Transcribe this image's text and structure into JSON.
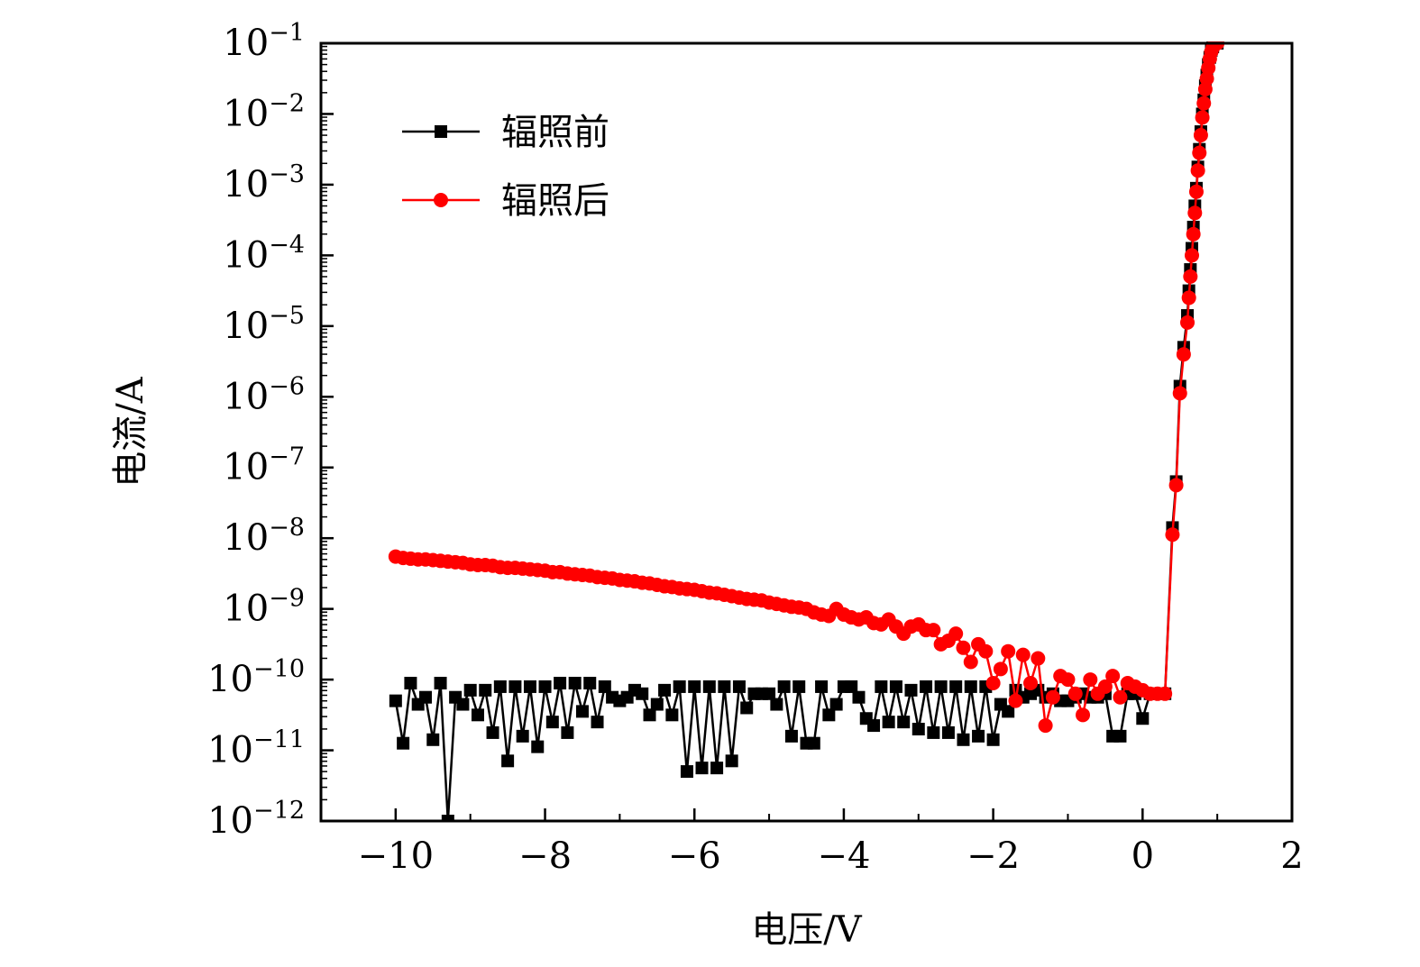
{
  "chart_data": {
    "type": "line",
    "xlabel": "电压/V",
    "ylabel": "电流/A",
    "xlim": [
      -11,
      2
    ],
    "ylim_log10": [
      -12,
      -1
    ],
    "y_scale": "log",
    "x_ticks": [
      -10,
      -8,
      -6,
      -4,
      -2,
      0,
      2
    ],
    "x_tick_labels": [
      "−10",
      "−8",
      "−6",
      "−4",
      "−2",
      "0",
      "2"
    ],
    "y_ticks_log10": [
      -12,
      -11,
      -10,
      -9,
      -8,
      -7,
      -6,
      -5,
      -4,
      -3,
      -2,
      -1
    ],
    "y_tick_labels": [
      {
        "base": "10",
        "exp": "−12"
      },
      {
        "base": "10",
        "exp": "−11"
      },
      {
        "base": "10",
        "exp": "−10"
      },
      {
        "base": "10",
        "exp": "−9"
      },
      {
        "base": "10",
        "exp": "−8"
      },
      {
        "base": "10",
        "exp": "−7"
      },
      {
        "base": "10",
        "exp": "−6"
      },
      {
        "base": "10",
        "exp": "−5"
      },
      {
        "base": "10",
        "exp": "−4"
      },
      {
        "base": "10",
        "exp": "−3"
      },
      {
        "base": "10",
        "exp": "−2"
      },
      {
        "base": "10",
        "exp": "−1"
      }
    ],
    "legend_position": "top-left",
    "grid": false,
    "series": [
      {
        "name": "辐照前",
        "color": "#000000",
        "marker": "square",
        "x": [
          -10.0,
          -9.9,
          -9.8,
          -9.7,
          -9.6,
          -9.5,
          -9.4,
          -9.3,
          -9.2,
          -9.1,
          -9.0,
          -8.9,
          -8.8,
          -8.7,
          -8.6,
          -8.5,
          -8.4,
          -8.3,
          -8.2,
          -8.1,
          -8.0,
          -7.9,
          -7.8,
          -7.7,
          -7.6,
          -7.5,
          -7.4,
          -7.3,
          -7.2,
          -7.1,
          -7.0,
          -6.9,
          -6.8,
          -6.7,
          -6.6,
          -6.5,
          -6.4,
          -6.3,
          -6.2,
          -6.1,
          -6.0,
          -5.9,
          -5.8,
          -5.7,
          -5.6,
          -5.5,
          -5.4,
          -5.3,
          -5.2,
          -5.1,
          -5.0,
          -4.9,
          -4.8,
          -4.7,
          -4.6,
          -4.5,
          -4.4,
          -4.3,
          -4.2,
          -4.1,
          -4.0,
          -3.9,
          -3.8,
          -3.7,
          -3.6,
          -3.5,
          -3.4,
          -3.3,
          -3.2,
          -3.1,
          -3.0,
          -2.9,
          -2.8,
          -2.7,
          -2.6,
          -2.5,
          -2.4,
          -2.3,
          -2.2,
          -2.1,
          -2.0,
          -1.9,
          -1.8,
          -1.7,
          -1.6,
          -1.5,
          -1.4,
          -1.3,
          -1.2,
          -1.1,
          -1.0,
          -0.9,
          -0.8,
          -0.7,
          -0.6,
          -0.5,
          -0.4,
          -0.3,
          -0.2,
          -0.1,
          0.0,
          0.1,
          0.2,
          0.3,
          0.4,
          0.45,
          0.5,
          0.55,
          0.6,
          0.62,
          0.64,
          0.66,
          0.68,
          0.7,
          0.72,
          0.74,
          0.76,
          0.78,
          0.8,
          0.82,
          0.84,
          0.86,
          0.88,
          0.9,
          0.92,
          0.94,
          0.96,
          0.98,
          1.0
        ],
        "y_log10": [
          -10.3,
          -10.9,
          -10.05,
          -10.35,
          -10.25,
          -10.85,
          -10.05,
          -12.0,
          -10.25,
          -10.35,
          -10.15,
          -10.5,
          -10.15,
          -10.75,
          -10.1,
          -11.15,
          -10.1,
          -10.8,
          -10.1,
          -10.95,
          -10.1,
          -10.6,
          -10.05,
          -10.75,
          -10.05,
          -10.45,
          -10.05,
          -10.6,
          -10.1,
          -10.25,
          -10.3,
          -10.25,
          -10.15,
          -10.2,
          -10.5,
          -10.35,
          -10.15,
          -10.5,
          -10.1,
          -11.3,
          -10.1,
          -11.25,
          -10.1,
          -11.25,
          -10.1,
          -11.15,
          -10.1,
          -10.4,
          -10.2,
          -10.2,
          -10.2,
          -10.35,
          -10.1,
          -10.8,
          -10.1,
          -10.9,
          -10.9,
          -10.1,
          -10.5,
          -10.35,
          -10.1,
          -10.1,
          -10.25,
          -10.55,
          -10.65,
          -10.1,
          -10.6,
          -10.1,
          -10.6,
          -10.15,
          -10.7,
          -10.1,
          -10.75,
          -10.1,
          -10.75,
          -10.1,
          -10.85,
          -10.1,
          -10.8,
          -10.1,
          -10.85,
          -10.35,
          -10.45,
          -10.15,
          -10.25,
          -10.2,
          -10.15,
          -10.25,
          -10.2,
          -10.3,
          -10.3,
          -10.25,
          -10.2,
          -10.25,
          -10.25,
          -10.2,
          -10.8,
          -10.8,
          -10.2,
          -10.2,
          -10.55,
          -10.2,
          -10.2,
          -10.2,
          -7.85,
          -7.2,
          -5.85,
          -5.3,
          -4.85,
          -4.5,
          -4.2,
          -3.9,
          -3.6,
          -3.3,
          -3.05,
          -2.75,
          -2.5,
          -2.25,
          -2.0,
          -1.8,
          -1.6,
          -1.45,
          -1.3,
          -1.2,
          -1.1,
          -1.05,
          -1.0,
          -1.0,
          -1.0
        ]
      },
      {
        "name": "辐照后",
        "color": "#ff0000",
        "marker": "circle",
        "x": [
          -10.0,
          -9.9,
          -9.8,
          -9.7,
          -9.6,
          -9.5,
          -9.4,
          -9.3,
          -9.2,
          -9.1,
          -9.0,
          -8.9,
          -8.8,
          -8.7,
          -8.6,
          -8.5,
          -8.4,
          -8.3,
          -8.2,
          -8.1,
          -8.0,
          -7.9,
          -7.8,
          -7.7,
          -7.6,
          -7.5,
          -7.4,
          -7.3,
          -7.2,
          -7.1,
          -7.0,
          -6.9,
          -6.8,
          -6.7,
          -6.6,
          -6.5,
          -6.4,
          -6.3,
          -6.2,
          -6.1,
          -6.0,
          -5.9,
          -5.8,
          -5.7,
          -5.6,
          -5.5,
          -5.4,
          -5.3,
          -5.2,
          -5.1,
          -5.0,
          -4.9,
          -4.8,
          -4.7,
          -4.6,
          -4.5,
          -4.4,
          -4.3,
          -4.2,
          -4.1,
          -4.0,
          -3.9,
          -3.8,
          -3.7,
          -3.6,
          -3.5,
          -3.4,
          -3.3,
          -3.2,
          -3.1,
          -3.0,
          -2.9,
          -2.8,
          -2.7,
          -2.6,
          -2.5,
          -2.4,
          -2.3,
          -2.2,
          -2.1,
          -2.0,
          -1.9,
          -1.8,
          -1.7,
          -1.6,
          -1.5,
          -1.4,
          -1.3,
          -1.2,
          -1.1,
          -1.0,
          -0.9,
          -0.8,
          -0.7,
          -0.6,
          -0.5,
          -0.4,
          -0.3,
          -0.2,
          -0.1,
          0.0,
          0.1,
          0.2,
          0.3,
          0.4,
          0.45,
          0.5,
          0.55,
          0.6,
          0.62,
          0.64,
          0.66,
          0.68,
          0.7,
          0.72,
          0.74,
          0.76,
          0.78,
          0.8,
          0.82,
          0.84,
          0.86,
          0.88,
          0.9,
          0.92,
          0.94,
          0.96,
          0.98,
          1.0
        ],
        "y_log10": [
          -8.26,
          -8.28,
          -8.29,
          -8.3,
          -8.3,
          -8.31,
          -8.32,
          -8.33,
          -8.34,
          -8.35,
          -8.37,
          -8.38,
          -8.38,
          -8.39,
          -8.41,
          -8.42,
          -8.42,
          -8.43,
          -8.44,
          -8.45,
          -8.46,
          -8.48,
          -8.48,
          -8.5,
          -8.51,
          -8.52,
          -8.53,
          -8.55,
          -8.56,
          -8.57,
          -8.59,
          -8.6,
          -8.61,
          -8.63,
          -8.64,
          -8.66,
          -8.68,
          -8.69,
          -8.71,
          -8.72,
          -8.73,
          -8.75,
          -8.77,
          -8.78,
          -8.8,
          -8.82,
          -8.84,
          -8.86,
          -8.87,
          -8.88,
          -8.91,
          -8.93,
          -8.95,
          -8.97,
          -8.98,
          -9.0,
          -9.05,
          -9.08,
          -9.1,
          -9.0,
          -9.08,
          -9.12,
          -9.15,
          -9.12,
          -9.2,
          -9.22,
          -9.15,
          -9.25,
          -9.35,
          -9.25,
          -9.22,
          -9.3,
          -9.3,
          -9.5,
          -9.45,
          -9.35,
          -9.55,
          -9.75,
          -9.5,
          -9.6,
          -10.05,
          -9.85,
          -9.6,
          -10.3,
          -9.65,
          -10.05,
          -9.7,
          -10.65,
          -10.25,
          -9.95,
          -10.0,
          -10.2,
          -10.5,
          -10.0,
          -10.2,
          -10.1,
          -9.95,
          -10.25,
          -10.05,
          -10.1,
          -10.15,
          -10.2,
          -10.2,
          -10.2,
          -7.95,
          -7.25,
          -5.95,
          -5.4,
          -4.95,
          -4.6,
          -4.3,
          -4.0,
          -3.7,
          -3.4,
          -3.1,
          -2.8,
          -2.55,
          -2.3,
          -2.05,
          -1.85,
          -1.65,
          -1.5,
          -1.35,
          -1.22,
          -1.12,
          -1.06,
          -1.02,
          -1.0,
          -1.0
        ]
      }
    ]
  }
}
